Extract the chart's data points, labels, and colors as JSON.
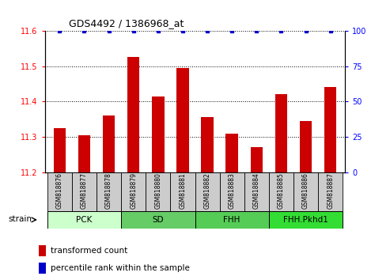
{
  "title": "GDS4492 / 1386968_at",
  "samples": [
    "GSM818876",
    "GSM818877",
    "GSM818878",
    "GSM818879",
    "GSM818880",
    "GSM818881",
    "GSM818882",
    "GSM818883",
    "GSM818884",
    "GSM818885",
    "GSM818886",
    "GSM818887"
  ],
  "red_values": [
    11.325,
    11.305,
    11.36,
    11.525,
    11.415,
    11.495,
    11.355,
    11.31,
    11.27,
    11.42,
    11.345,
    11.44
  ],
  "blue_values": [
    100,
    100,
    100,
    100,
    100,
    100,
    100,
    100,
    100,
    100,
    100,
    100
  ],
  "ylim_left": [
    11.2,
    11.6
  ],
  "ylim_right": [
    0,
    100
  ],
  "yticks_left": [
    11.2,
    11.3,
    11.4,
    11.5,
    11.6
  ],
  "yticks_right": [
    0,
    25,
    50,
    75,
    100
  ],
  "bar_color": "#cc0000",
  "dot_color": "#0000cc",
  "bar_bottom": 11.2,
  "legend_red": "transformed count",
  "legend_blue": "percentile rank within the sample",
  "strain_label": "strain",
  "groups_info": [
    {
      "label": "PCK",
      "start": 0,
      "end": 2,
      "color": "#ccffcc"
    },
    {
      "label": "SD",
      "start": 3,
      "end": 5,
      "color": "#66cc66"
    },
    {
      "label": "FHH",
      "start": 6,
      "end": 8,
      "color": "#55cc55"
    },
    {
      "label": "FHH.Pkhd1",
      "start": 9,
      "end": 11,
      "color": "#33dd33"
    }
  ],
  "sample_bg_color": "#cccccc",
  "grid_color": "black",
  "grid_linestyle": "dotted",
  "bar_width": 0.5
}
